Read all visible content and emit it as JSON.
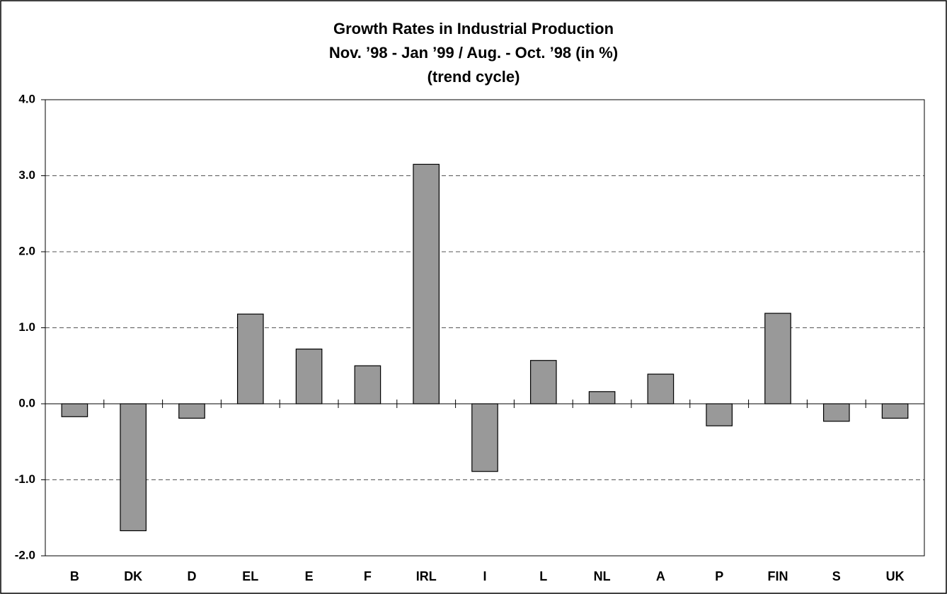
{
  "chart_data": {
    "type": "bar",
    "title": "Growth Rates in Industrial Production",
    "subtitle": [
      "Nov. ’98 - Jan ’99 / Aug. - Oct. ’98 (in %)",
      "(trend cycle)"
    ],
    "categories": [
      "B",
      "DK",
      "D",
      "EL",
      "E",
      "F",
      "IRL",
      "I",
      "L",
      "NL",
      "A",
      "P",
      "FIN",
      "S",
      "UK"
    ],
    "values": [
      -0.17,
      -1.67,
      -0.19,
      1.18,
      0.72,
      0.5,
      3.15,
      -0.89,
      0.57,
      0.16,
      0.39,
      -0.29,
      1.19,
      -0.23,
      -0.19
    ],
    "color": "#999999",
    "ylim": [
      -2,
      4
    ],
    "yticks": [
      {
        "value": -2,
        "label": "-2.0"
      },
      {
        "value": -1,
        "label": "-1.0"
      },
      {
        "value": 0,
        "label": "0.0"
      },
      {
        "value": 1,
        "label": "1.0"
      },
      {
        "value": 2,
        "label": "2.0"
      },
      {
        "value": 3,
        "label": "3.0"
      },
      {
        "value": 4,
        "label": "4.0"
      }
    ],
    "grid": true
  }
}
